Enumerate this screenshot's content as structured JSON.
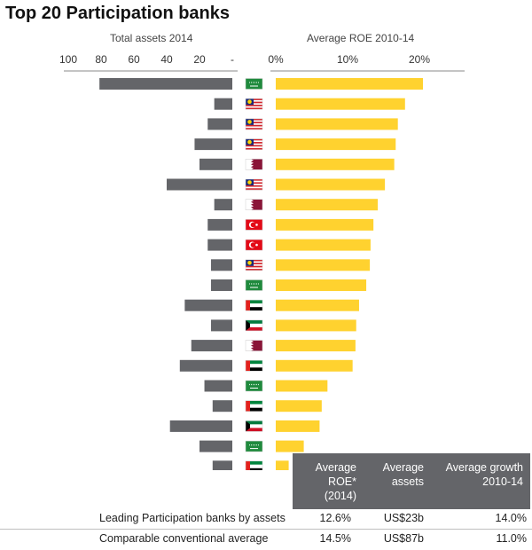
{
  "title": "Top 20 Participation banks",
  "chart_data": {
    "type": "bar",
    "left_panel": {
      "title": "Total assets 2014",
      "ticks": [
        "100",
        "80",
        "60",
        "40",
        "20",
        "-"
      ],
      "xlim": [
        0,
        100
      ],
      "color": "#646569",
      "values": [
        81,
        11,
        15,
        23,
        20,
        40,
        11,
        15,
        15,
        13,
        13,
        29,
        13,
        25,
        32,
        17,
        12,
        38,
        20,
        12
      ]
    },
    "right_panel": {
      "title": "Average ROE 2010-14",
      "ticks": [
        "0%",
        "10%",
        "20%"
      ],
      "xlim": [
        0,
        26
      ],
      "unit": "%",
      "color": "#FFD22F",
      "values": [
        20.5,
        18.0,
        17.0,
        16.7,
        16.5,
        15.2,
        14.2,
        13.6,
        13.2,
        13.1,
        12.6,
        11.6,
        11.2,
        11.1,
        10.7,
        7.2,
        6.4,
        6.1,
        3.9,
        1.8
      ]
    },
    "flags": [
      "saudi-arabia",
      "malaysia",
      "malaysia",
      "malaysia",
      "qatar",
      "malaysia",
      "qatar",
      "turkey",
      "turkey",
      "malaysia",
      "saudi-arabia",
      "uae",
      "kuwait",
      "qatar",
      "uae",
      "saudi-arabia",
      "uae",
      "kuwait",
      "saudi-arabia",
      "uae"
    ]
  },
  "table": {
    "headers": [
      {
        "line1": "Average",
        "line2": "ROE*",
        "line3": "(2014)"
      },
      {
        "line1": "Average",
        "line2": "assets",
        "line3": ""
      },
      {
        "line1": "Average growth",
        "line2": "2010-14",
        "line3": ""
      }
    ],
    "rows": [
      {
        "label": "Leading Participation banks by assets",
        "roe": "12.6%",
        "assets": "US$23b",
        "growth": "14.0%"
      },
      {
        "label": "Comparable conventional average",
        "roe": "14.5%",
        "assets": "US$87b",
        "growth": "11.0%"
      }
    ]
  }
}
